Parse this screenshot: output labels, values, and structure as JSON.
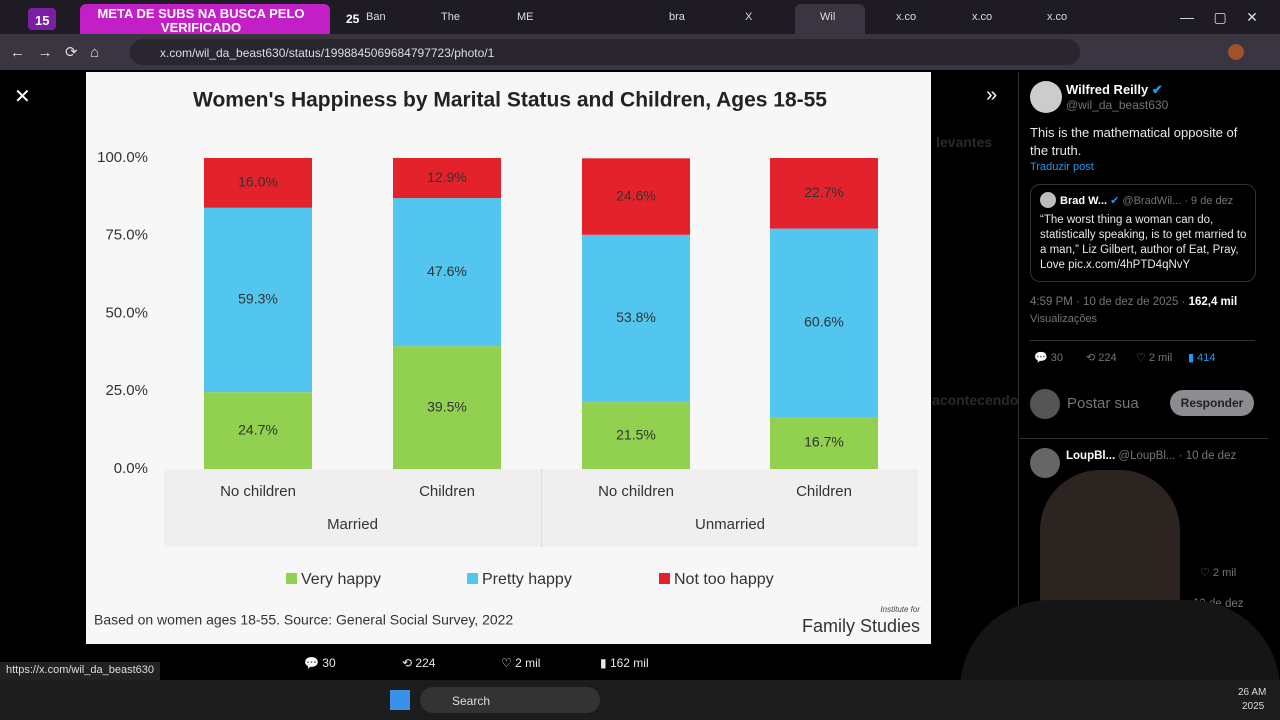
{
  "browser": {
    "tab_badge": "15",
    "banner": "META DE SUBS NA BUSCA PELO VERIFICADO",
    "tab_icon": "25",
    "tabs": [
      "Ban",
      "The",
      "ME",
      "bra",
      "X",
      "Wil",
      "x.co",
      "x.co",
      "x.co"
    ],
    "url": "x.com/wil_da_beast630/status/1998845069684797723/photo/1",
    "status_link": "https://x.com/wil_da_beast630"
  },
  "chart_data": {
    "type": "stacked-bar",
    "title": "Women's Happiness by Marital Status and Children, Ages 18-55",
    "categories": [
      "No children",
      "Children",
      "No children",
      "Children"
    ],
    "groups": [
      {
        "label": "Married",
        "size": 2
      },
      {
        "label": "Unmarried",
        "size": 2
      }
    ],
    "series": [
      {
        "name": "Very happy",
        "color": "#92d050",
        "values": [
          24.7,
          39.5,
          21.5,
          16.7
        ],
        "value_labels": [
          "24.7%",
          "39.5%",
          "21.5%",
          "16.7%"
        ]
      },
      {
        "name": "Pretty happy",
        "color": "#52c6ef",
        "values": [
          59.3,
          47.6,
          53.8,
          60.6
        ],
        "value_labels": [
          "59.3%",
          "47.6%",
          "53.8%",
          "60.6%"
        ]
      },
      {
        "name": "Not too happy",
        "color": "#e3222b",
        "values": [
          16.0,
          12.9,
          24.6,
          22.7
        ],
        "value_labels": [
          "16.0%",
          "12.9%",
          "24.6%",
          "22.7%"
        ]
      }
    ],
    "ylim": [
      0,
      100
    ],
    "yticks": [
      {
        "value": 0,
        "label": "0.0%"
      },
      {
        "value": 25,
        "label": "25.0%"
      },
      {
        "value": 50,
        "label": "50.0%"
      },
      {
        "value": 75,
        "label": "75.0%"
      },
      {
        "value": 100,
        "label": "100.0%"
      }
    ],
    "legend": "bottom",
    "note": "Based on women ages 18-55. Source: General Social Survey, 2022",
    "logo": [
      "Institute for",
      "Family Studies"
    ]
  },
  "photo_actions": {
    "replies": 30,
    "reposts": 224,
    "likes": "2 mil",
    "views": "162 mil"
  },
  "background_text": [
    "levantes",
    "acontecendo"
  ],
  "post": {
    "author": "Wilfred Reilly",
    "handle": "@wil_da_beast630",
    "text": "This is the mathematical opposite of the truth.",
    "translate": "Traduzir post",
    "quote": {
      "author": "Brad W...",
      "handle": "@BradWil...",
      "date": "· 9 de dez",
      "text": "“The worst thing a woman can do, statistically speaking, is to get married to a man,” Liz Gilbert, author of Eat, Pray, Love pic.x.com/4hPTD4qNvY"
    },
    "time": "4:59 PM · 10 de dez de 2025 ·",
    "views": "162,4 mil",
    "views_label": "Visualizações",
    "stats": {
      "replies": 30,
      "reposts": 224,
      "likes": "2 mil",
      "bookmarks": 414
    }
  },
  "reply_box": {
    "placeholder": "Postar sua",
    "button": "Responder"
  },
  "reply": {
    "author": "LoupBl...",
    "handle": "@LoupBl...",
    "date": "· 10 de dez",
    "likes": "2 mil",
    "next_date": "· 10 de dez"
  },
  "taskbar": {
    "search": "Search",
    "time": "26 AM",
    "date": "2025"
  }
}
